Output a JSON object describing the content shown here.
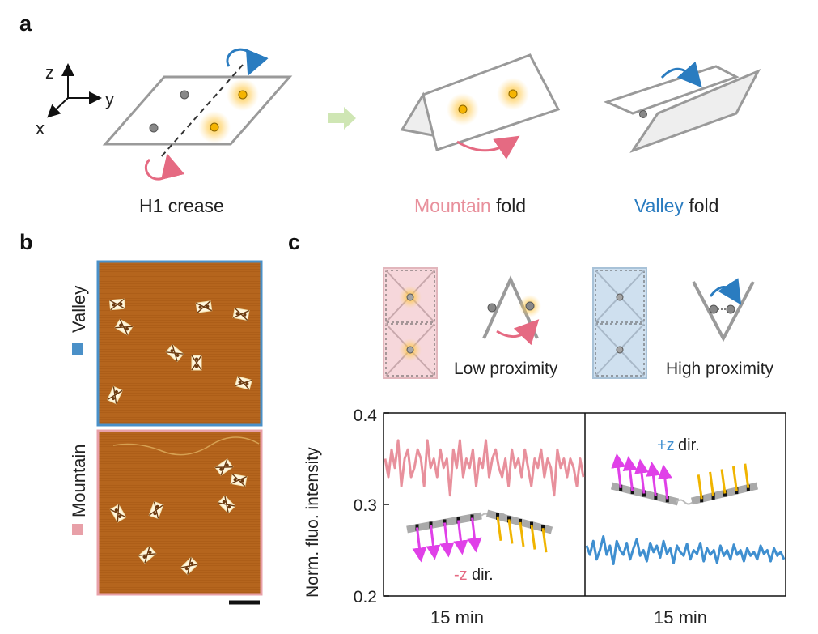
{
  "panel_a": {
    "letter": "a",
    "axes": {
      "z": "z",
      "y": "y",
      "x": "x"
    },
    "captions": {
      "crease": "H1 crease",
      "mountain_word": "Mountain",
      "valley_word": "Valley",
      "fold_word": "fold"
    }
  },
  "panel_b": {
    "letter": "b",
    "valley_label": "Valley",
    "mountain_label": "Mountain",
    "colors": {
      "valley": "#4a90c8",
      "mountain": "#e8a0a8",
      "afm": "#b5651d"
    }
  },
  "panel_c": {
    "letter": "c",
    "schematic_labels": {
      "low": "Low proximity",
      "high": "High proximity"
    },
    "annotations": {
      "neg_z_sign": "-z",
      "pos_z_sign": "+z",
      "dir_word": "dir."
    },
    "colors": {
      "mountain": "#e8909c",
      "valley": "#3f8fd0",
      "arrows": "#e040e8",
      "sticks": "#f0b400"
    }
  },
  "chart_data": {
    "type": "line",
    "ylabel": "Norm. fluo. intensity",
    "ylim": [
      0.2,
      0.4
    ],
    "yticks": [
      "0.2",
      "0.3",
      "0.4"
    ],
    "xlabels": [
      "15 min",
      "15 min"
    ],
    "series": [
      {
        "values": [
          0.35,
          0.33,
          0.36,
          0.34,
          0.37,
          0.32,
          0.35,
          0.36,
          0.33,
          0.34,
          0.36,
          0.35,
          0.32,
          0.37,
          0.34,
          0.35,
          0.33,
          0.36,
          0.34,
          0.35,
          0.31,
          0.36,
          0.34,
          0.37,
          0.33,
          0.35,
          0.34,
          0.36,
          0.32,
          0.35,
          0.34,
          0.37,
          0.33,
          0.35,
          0.36,
          0.34,
          0.33,
          0.35,
          0.32,
          0.36,
          0.34,
          0.35,
          0.33,
          0.36,
          0.34,
          0.32,
          0.35,
          0.34,
          0.36,
          0.33,
          0.35,
          0.34,
          0.31,
          0.36,
          0.34,
          0.35,
          0.33,
          0.35,
          0.34,
          0.32,
          0.35,
          0.33
        ]
      },
      {
        "values": [
          0.255,
          0.245,
          0.26,
          0.24,
          0.25,
          0.265,
          0.245,
          0.255,
          0.235,
          0.26,
          0.25,
          0.245,
          0.258,
          0.24,
          0.252,
          0.262,
          0.244,
          0.25,
          0.238,
          0.258,
          0.248,
          0.255,
          0.242,
          0.26,
          0.246,
          0.252,
          0.236,
          0.255,
          0.248,
          0.244,
          0.257,
          0.24,
          0.25,
          0.246,
          0.258,
          0.238,
          0.252,
          0.245,
          0.25,
          0.236,
          0.255,
          0.244,
          0.25,
          0.24,
          0.256,
          0.245,
          0.25,
          0.238,
          0.252,
          0.244,
          0.248,
          0.24,
          0.255,
          0.246,
          0.25,
          0.238,
          0.252,
          0.244,
          0.248,
          0.24
        ]
      }
    ]
  }
}
